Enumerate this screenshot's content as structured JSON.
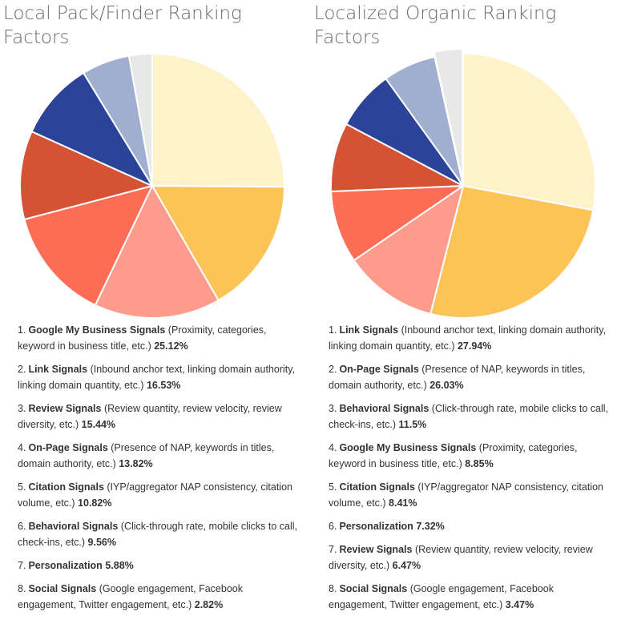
{
  "chart_data": [
    {
      "type": "pie",
      "title": "Local Pack/Finder Ranking Factors",
      "slices": [
        {
          "rank": "1.",
          "label": "Google My Business Signals",
          "detail": "(Proximity, categories, keyword in business title, etc.)",
          "value_text": "25.12%",
          "value": 25.12,
          "color": "#fef2cb"
        },
        {
          "rank": "2.",
          "label": "Link Signals",
          "detail": "(Inbound anchor text, linking domain authority, linking domain quantity, etc.)",
          "value_text": "16.53%",
          "value": 16.53,
          "color": "#fcc457"
        },
        {
          "rank": "3.",
          "label": "Review Signals",
          "detail": "(Review quantity, review velocity, review diversity, etc.)",
          "value_text": "15.44%",
          "value": 15.44,
          "color": "#fd9b8c"
        },
        {
          "rank": "4.",
          "label": "On-Page Signals",
          "detail": "(Presence of NAP, keywords in titles, domain authority, etc.)",
          "value_text": "13.82%",
          "value": 13.82,
          "color": "#fd6d56"
        },
        {
          "rank": "5.",
          "label": "Citation Signals",
          "detail": "(IYP/aggregator NAP consistency, citation volume, etc.)",
          "value_text": "10.82%",
          "value": 10.82,
          "color": "#d65234"
        },
        {
          "rank": "6.",
          "label": "Behavioral Signals",
          "detail": "(Click-through rate, mobile clicks to call, check-ins, etc.)",
          "value_text": "9.56%",
          "value": 9.56,
          "color": "#2b4399"
        },
        {
          "rank": "7.",
          "label": "Personalization",
          "detail": "",
          "value_text": "5.88%",
          "value": 5.88,
          "color": "#a0aecf"
        },
        {
          "rank": "8.",
          "label": "Social Signals",
          "detail": "(Google engagement, Facebook engagement, Twitter engagement, etc.)",
          "value_text": "2.82%",
          "value": 2.82,
          "color": "#e8e8e8"
        }
      ]
    },
    {
      "type": "pie",
      "title": "Localized Organic Ranking Factors",
      "slices": [
        {
          "rank": "1.",
          "label": "Link Signals",
          "detail": "(Inbound anchor text, linking domain authority, linking domain quantity, etc.)",
          "value_text": "27.94%",
          "value": 27.94,
          "color": "#fef2cb"
        },
        {
          "rank": "2.",
          "label": "On-Page Signals",
          "detail": "(Presence of NAP, keywords in titles, domain authority, etc.)",
          "value_text": "26.03%",
          "value": 26.03,
          "color": "#fcc457"
        },
        {
          "rank": "3.",
          "label": "Behavioral Signals",
          "detail": "(Click-through rate, mobile clicks to call, check-ins, etc.)",
          "value_text": "11.5%",
          "value": 11.5,
          "color": "#fd9b8c"
        },
        {
          "rank": "4.",
          "label": "Google My Business Signals",
          "detail": "(Proximity, categories, keyword in business title, etc.)",
          "value_text": "8.85%",
          "value": 8.85,
          "color": "#fd6d56"
        },
        {
          "rank": "5.",
          "label": "Citation Signals",
          "detail": "(IYP/aggregator NAP consistency, citation volume, etc.)",
          "value_text": "8.41%",
          "value": 8.41,
          "color": "#d65234"
        },
        {
          "rank": "6.",
          "label": "Personalization",
          "detail": "",
          "value_text": "7.32%",
          "value": 7.32,
          "color": "#2b4399"
        },
        {
          "rank": "7.",
          "label": "Review Signals",
          "detail": "(Review quantity, review velocity, review diversity, etc.)",
          "value_text": "6.47%",
          "value": 6.47,
          "color": "#a0aecf"
        },
        {
          "rank": "8.",
          "label": "Social Signals",
          "detail": "(Google engagement, Facebook engagement, Twitter engagement, etc.)",
          "value_text": "3.47%",
          "value": 3.47,
          "color": "#e8e8e8"
        }
      ]
    }
  ]
}
